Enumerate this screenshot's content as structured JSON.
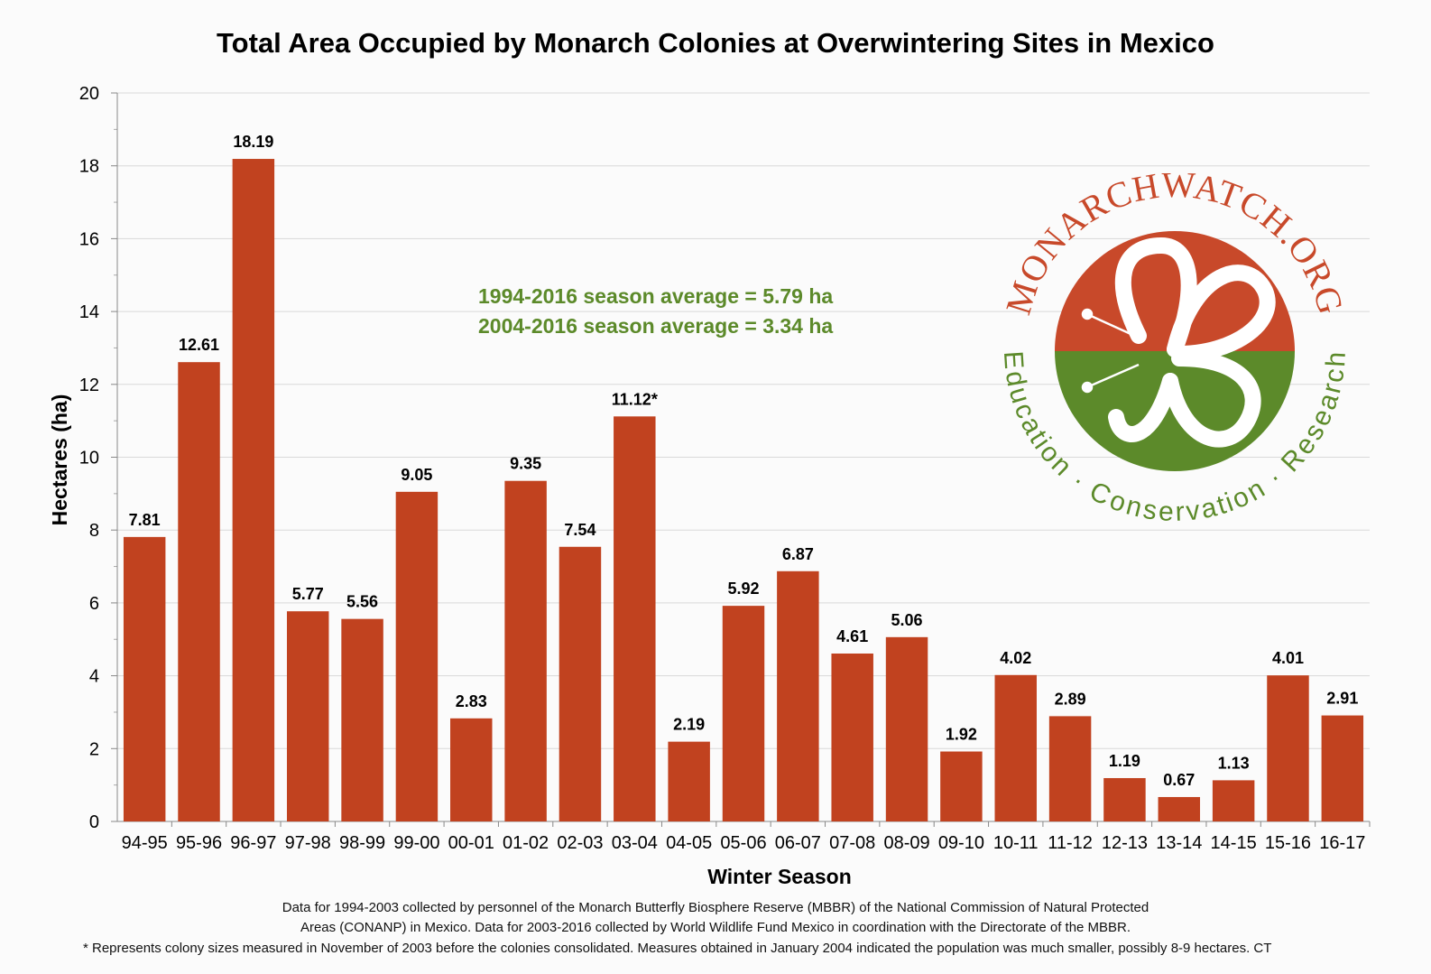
{
  "chart_data": {
    "type": "bar",
    "title": "Total Area Occupied by Monarch Colonies at Overwintering Sites in Mexico",
    "xlabel": "Winter Season",
    "ylabel": "Hectares (ha)",
    "ylim": [
      0,
      20
    ],
    "yticks": [
      "0",
      "2",
      "4",
      "6",
      "8",
      "10",
      "12",
      "14",
      "16",
      "18",
      "20"
    ],
    "grid": true,
    "bar_color": "#c1421f",
    "categories": [
      "94-95",
      "95-96",
      "96-97",
      "97-98",
      "98-99",
      "99-00",
      "00-01",
      "01-02",
      "02-03",
      "03-04",
      "04-05",
      "05-06",
      "06-07",
      "07-08",
      "08-09",
      "09-10",
      "10-11",
      "11-12",
      "12-13",
      "13-14",
      "14-15",
      "15-16",
      "16-17"
    ],
    "values": [
      7.81,
      12.61,
      18.19,
      5.77,
      5.56,
      9.05,
      2.83,
      9.35,
      7.54,
      11.12,
      2.19,
      5.92,
      6.87,
      4.61,
      5.06,
      1.92,
      4.02,
      2.89,
      1.19,
      0.67,
      1.13,
      4.01,
      2.91
    ],
    "data_labels": [
      "7.81",
      "12.61",
      "18.19",
      "5.77",
      "5.56",
      "9.05",
      "2.83",
      "9.35",
      "7.54",
      "11.12*",
      "2.19",
      "5.92",
      "6.87",
      "4.61",
      "5.06",
      "1.92",
      "4.02",
      "2.89",
      "1.19",
      "0.67",
      "1.13",
      "4.01",
      "2.91"
    ],
    "annotations": [
      "1994-2016 season average = 5.79 ha",
      "2004-2016 season average = 3.34 ha"
    ],
    "annotation_color": "#5c8a2a"
  },
  "footnotes": [
    "Data for 1994-2003 collected by personnel of the Monarch Butterfly Biosphere Reserve (MBBR) of the National Commission of Natural Protected",
    "Areas (CONANP) in Mexico. Data for 2003-2016 collected by World Wildlife Fund Mexico in coordination with the Directorate of the MBBR.",
    "* Represents colony sizes measured in November of 2003 before the colonies consolidated. Measures obtained in January 2004 indicated the population was much smaller, possibly 8-9 hectares. CT"
  ],
  "logo": {
    "top_text": "MONARCHWATCH.ORG",
    "bottom_text": "Education · Conservation · Research",
    "colors": {
      "orange": "#c8492a",
      "green": "#5c8a2a"
    },
    "icon": "butterfly-icon"
  }
}
